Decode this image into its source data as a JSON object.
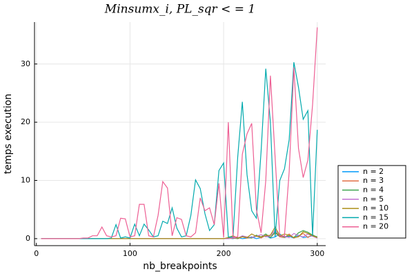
{
  "chart_data": {
    "type": "line",
    "title": "Minsumx_i, PL_sqr < = 1",
    "x_label": "nb_breakpoints",
    "y_label": "temps execution",
    "x": [
      5,
      10,
      15,
      20,
      25,
      30,
      35,
      40,
      45,
      50,
      55,
      60,
      65,
      70,
      75,
      80,
      85,
      90,
      95,
      100,
      105,
      110,
      115,
      120,
      125,
      130,
      135,
      140,
      145,
      150,
      155,
      160,
      165,
      170,
      175,
      180,
      185,
      190,
      195,
      200,
      205,
      210,
      215,
      220,
      225,
      230,
      235,
      240,
      245,
      250,
      255,
      260,
      265,
      270,
      275,
      280,
      285,
      290,
      295,
      300
    ],
    "series": [
      {
        "name": "n = 2",
        "color": "#009af9",
        "values": [
          0,
          0,
          0,
          0,
          0,
          0,
          0,
          0,
          0,
          0,
          0,
          0,
          0,
          0,
          0,
          0,
          0,
          0,
          0,
          0,
          0,
          0,
          0,
          0,
          0,
          0,
          0,
          0,
          0,
          0,
          0,
          0,
          0,
          0,
          0,
          0,
          0,
          0,
          0,
          0,
          0.1,
          0,
          0.2,
          0,
          0.1,
          0.3,
          0,
          0.2,
          0.5,
          0.1,
          0.3,
          0.8,
          0.2,
          0.4,
          0.1,
          0.6,
          0.2,
          0.3,
          0.5,
          0.2
        ]
      },
      {
        "name": "n = 3",
        "color": "#e26f46",
        "values": [
          0,
          0,
          0,
          0,
          0,
          0,
          0,
          0,
          0,
          0,
          0,
          0,
          0,
          0,
          0,
          0,
          0,
          0,
          0,
          0,
          0,
          0,
          0,
          0,
          0,
          0,
          0,
          0,
          0,
          0,
          0,
          0,
          0,
          0,
          0,
          0,
          0,
          0,
          0,
          0,
          0,
          0.1,
          0,
          0.3,
          0.1,
          0.2,
          0.5,
          0.1,
          0.6,
          0.2,
          1.0,
          0.3,
          0.2,
          0.8,
          0.1,
          0.4,
          0.9,
          0.2,
          0.7,
          0.1
        ]
      },
      {
        "name": "n = 4",
        "color": "#3da44d",
        "values": [
          0,
          0,
          0,
          0,
          0,
          0,
          0,
          0,
          0,
          0,
          0,
          0,
          0,
          0,
          0,
          0,
          0,
          0,
          0,
          0,
          0,
          0,
          0,
          0,
          0,
          0,
          0,
          0,
          0,
          0,
          0,
          0,
          0,
          0,
          0,
          0,
          0,
          0,
          0,
          0,
          0.1,
          0.2,
          0,
          0.4,
          0.2,
          0.1,
          0.6,
          0.3,
          0.8,
          0.2,
          1.2,
          0.4,
          0.3,
          0.5,
          0.2,
          1.0,
          1.4,
          1.1,
          0.6,
          0.3
        ]
      },
      {
        "name": "n = 5",
        "color": "#c271d2",
        "values": [
          0,
          0,
          0,
          0,
          0,
          0,
          0,
          0,
          0,
          0,
          0,
          0,
          0,
          0,
          0,
          0,
          0,
          0,
          0,
          0,
          0,
          0,
          0,
          0,
          0,
          0,
          0,
          0,
          0,
          0,
          0,
          0,
          0,
          0,
          0,
          0,
          0,
          0,
          0,
          0,
          0,
          0.2,
          0.1,
          0.5,
          0.3,
          0.2,
          0.4,
          0.7,
          0.3,
          0.5,
          1.5,
          0.6,
          0.4,
          0.2,
          0.9,
          0.5,
          0.3,
          0.8,
          0.4,
          0.1
        ]
      },
      {
        "name": "n = 10",
        "color": "#ac8e18",
        "values": [
          0,
          0,
          0,
          0,
          0,
          0,
          0,
          0,
          0,
          0,
          0,
          0,
          0,
          0,
          0,
          0,
          0,
          0,
          0,
          0,
          0,
          0,
          0,
          0,
          0,
          0,
          0,
          0,
          0,
          0,
          0,
          0,
          0,
          0,
          0,
          0,
          0,
          0,
          0,
          0,
          0.2,
          0.5,
          0.1,
          0.3,
          0.2,
          0.8,
          0.4,
          0.3,
          0.5,
          0.6,
          2.0,
          0.5,
          0.8,
          0.6,
          0.2,
          0.3,
          1.2,
          0.9,
          0.5,
          0.2
        ]
      },
      {
        "name": "n = 15",
        "color": "#00a9ad",
        "values": [
          0,
          0,
          0,
          0,
          0,
          0,
          0,
          0,
          0,
          0,
          0,
          0,
          0,
          0,
          0,
          0.1,
          2.4,
          0.1,
          0.3,
          0.1,
          2.5,
          0.5,
          2.5,
          1.5,
          0.3,
          0.5,
          3,
          2.6,
          5.3,
          1.8,
          0.3,
          0.5,
          4,
          10.1,
          8.6,
          4.3,
          1.4,
          2.4,
          11.7,
          13,
          0.3,
          0.3,
          14,
          23.5,
          11,
          4.8,
          3.5,
          15,
          29.2,
          20,
          0.3,
          10,
          12,
          17,
          30.3,
          26,
          20.5,
          22,
          0.5,
          18.7
        ]
      },
      {
        "name": "n = 20",
        "color": "#ed5e93",
        "values": [
          0,
          0,
          0,
          0,
          0,
          0,
          0,
          0,
          0,
          0.1,
          0.1,
          0.5,
          0.5,
          2,
          0.5,
          0.3,
          0.5,
          3.5,
          3.4,
          0.3,
          0.5,
          5.9,
          5.9,
          0.5,
          0.3,
          4,
          9.8,
          8.7,
          0.5,
          3.6,
          3.3,
          0.5,
          0.3,
          1,
          7,
          4.8,
          5.3,
          2.4,
          9.5,
          0.2,
          20,
          0.3,
          0.3,
          14.5,
          18,
          19.8,
          5,
          1,
          10,
          28,
          14,
          0.3,
          0.5,
          11.5,
          29.4,
          15.5,
          10.5,
          13.5,
          23,
          36.3
        ]
      }
    ],
    "xlim": [
      -2,
      309
    ],
    "xticks": [
      0,
      100,
      200,
      300
    ],
    "ylim": [
      -1.2,
      37.2
    ],
    "yticks": [
      0,
      10,
      20,
      30
    ],
    "grid": true,
    "legend": "outer-bottom-right"
  }
}
